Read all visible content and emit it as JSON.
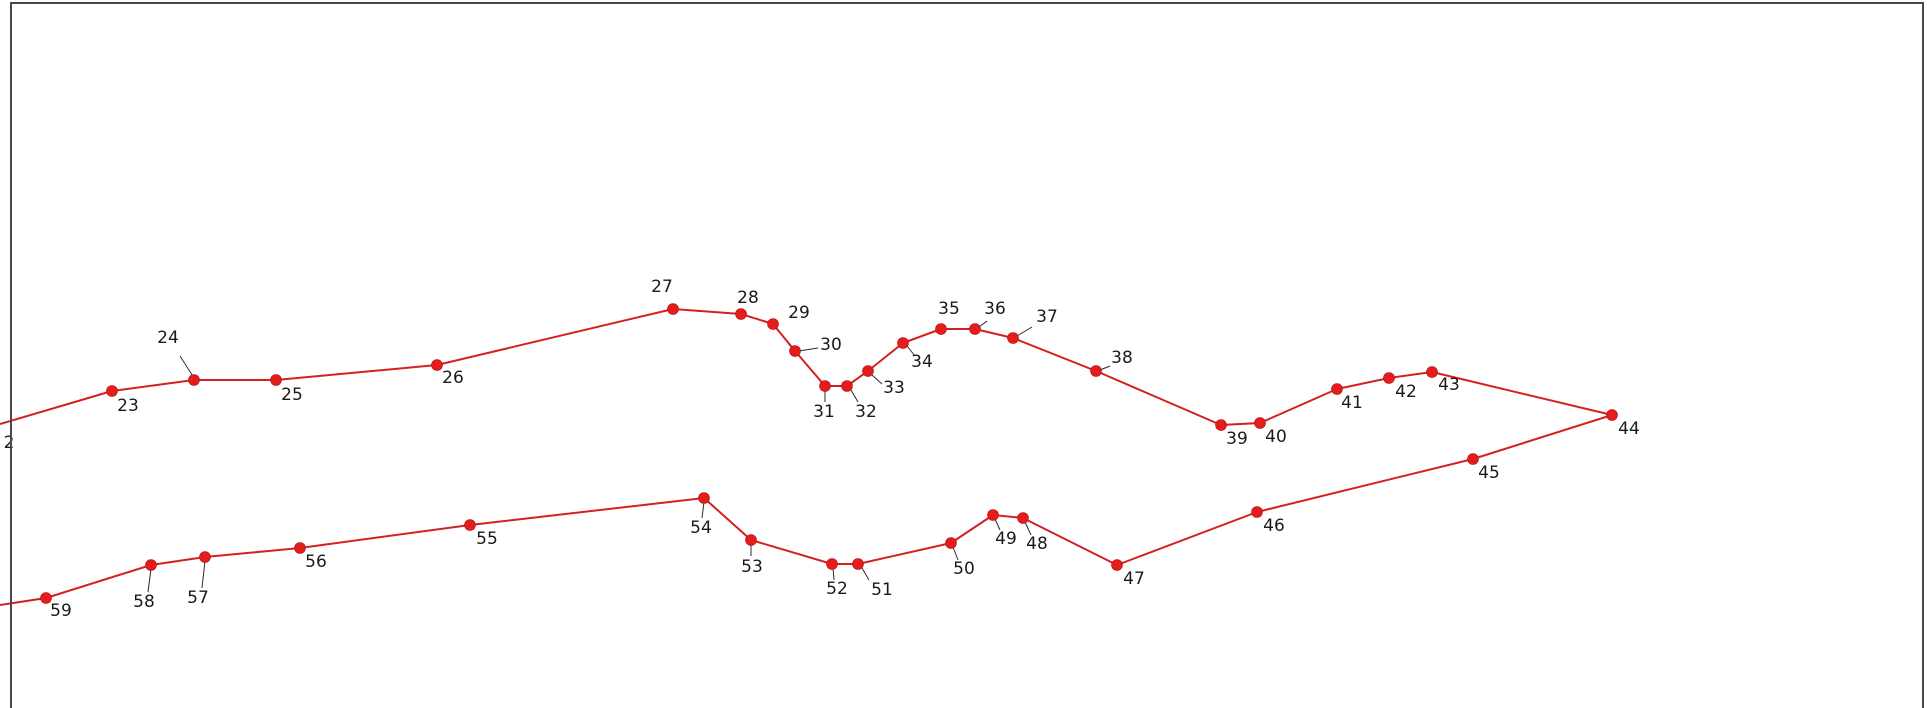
{
  "map_canvas": {
    "route_color": "#e51c1c",
    "border_color": "#4a4a4a",
    "labels_visible": [
      "2",
      "23",
      "24",
      "25",
      "26",
      "27",
      "28",
      "29",
      "30",
      "31",
      "32",
      "33",
      "34",
      "35",
      "36",
      "37",
      "38",
      "39",
      "40",
      "41",
      "42",
      "43",
      "44",
      "45",
      "46",
      "47",
      "48",
      "49",
      "50",
      "51",
      "52",
      "53",
      "54",
      "55",
      "56",
      "57",
      "58",
      "59"
    ]
  }
}
